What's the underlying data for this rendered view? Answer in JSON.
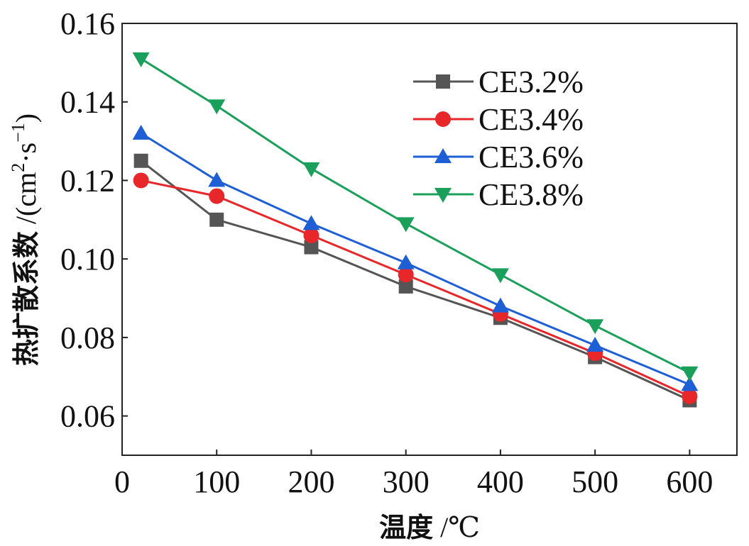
{
  "chart_data": {
    "type": "line",
    "x": [
      20,
      100,
      200,
      300,
      400,
      500,
      600
    ],
    "xlim": [
      0,
      650
    ],
    "ylim": [
      0.05,
      0.16
    ],
    "xticks": [
      "0",
      "100",
      "200",
      "300",
      "400",
      "500",
      "600"
    ],
    "yticks": [
      "0.06",
      "0.08",
      "0.10",
      "0.12",
      "0.14",
      "0.16"
    ],
    "xlabel": {
      "name": "温度",
      "unit": "/℃"
    },
    "ylabel": {
      "name": "热扩散系数",
      "unit_prefix": "/(cm",
      "unit_sup1": "2",
      "unit_mid": "·s",
      "unit_sup2": "−1",
      "unit_suffix": ")"
    },
    "grid": false,
    "legend_position": "top-right",
    "series": [
      {
        "name": "CE3.2%",
        "color": "#555555",
        "marker": "square",
        "values": [
          0.125,
          0.11,
          0.103,
          0.093,
          0.085,
          0.075,
          0.064
        ]
      },
      {
        "name": "CE3.4%",
        "color": "#e8272a",
        "marker": "circle",
        "values": [
          0.12,
          0.116,
          0.106,
          0.096,
          0.086,
          0.076,
          0.065
        ]
      },
      {
        "name": "CE3.6%",
        "color": "#1f5fd6",
        "marker": "triangle-up",
        "values": [
          0.132,
          0.12,
          0.109,
          0.099,
          0.088,
          0.078,
          0.068
        ]
      },
      {
        "name": "CE3.8%",
        "color": "#1aa05a",
        "marker": "triangle-down",
        "values": [
          0.151,
          0.139,
          0.123,
          0.109,
          0.096,
          0.083,
          0.071
        ]
      }
    ]
  }
}
